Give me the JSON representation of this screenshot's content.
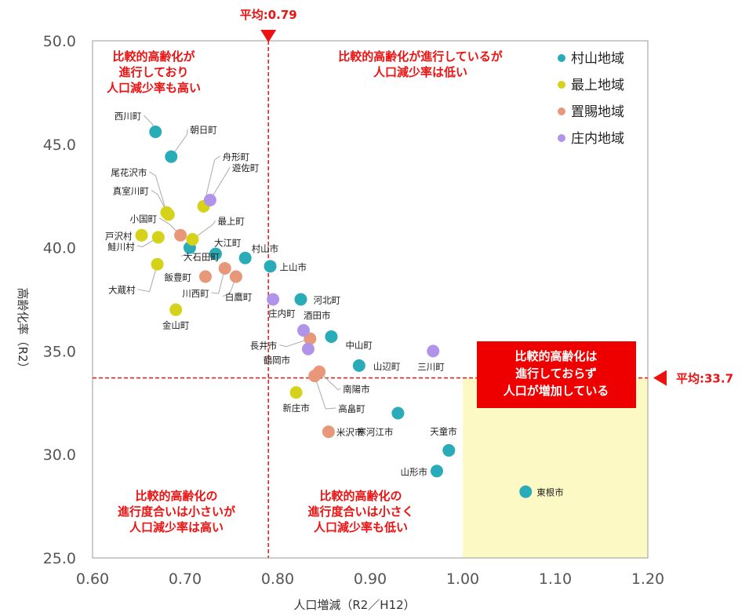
{
  "chart_data": {
    "type": "scatter",
    "title": "",
    "xlabel": "人口増減（R2／H12）",
    "ylabel": "高齢化率（R2）",
    "xlim": [
      0.6,
      1.2
    ],
    "ylim": [
      25.0,
      50.0
    ],
    "x_ticks": [
      "0.60",
      "0.70",
      "0.80",
      "0.90",
      "1.00",
      "1.10",
      "1.20"
    ],
    "y_ticks": [
      "25.0",
      "30.0",
      "35.0",
      "40.0",
      "45.0",
      "50.0"
    ],
    "grid": false,
    "legend_position": "top-right",
    "avg_x": {
      "value": 0.79,
      "label": "平均:0.79"
    },
    "avg_y": {
      "value": 33.7,
      "label": "平均:33.7"
    },
    "series": [
      {
        "name": "村山地域",
        "color": "#2aabb8",
        "points": [
          {
            "label": "西川町",
            "x": 0.668,
            "y": 45.6
          },
          {
            "label": "朝日町",
            "x": 0.685,
            "y": 44.4
          },
          {
            "label": "大石田町",
            "x": 0.705,
            "y": 40.0
          },
          {
            "label": "大江町",
            "x": 0.733,
            "y": 39.7
          },
          {
            "label": "村山市",
            "x": 0.765,
            "y": 39.5
          },
          {
            "label": "上山市",
            "x": 0.792,
            "y": 39.1
          },
          {
            "label": "河北町",
            "x": 0.825,
            "y": 37.5
          },
          {
            "label": "中山町",
            "x": 0.858,
            "y": 35.7
          },
          {
            "label": "山辺町",
            "x": 0.888,
            "y": 34.3
          },
          {
            "label": "寒河江市",
            "x": 0.93,
            "y": 32.0
          },
          {
            "label": "天童市",
            "x": 0.985,
            "y": 30.2
          },
          {
            "label": "山形市",
            "x": 0.972,
            "y": 29.2
          },
          {
            "label": "東根市",
            "x": 1.068,
            "y": 28.2
          }
        ]
      },
      {
        "name": "最上地域",
        "color": "#d6d21a",
        "points": [
          {
            "label": "尾花沢市",
            "x": 0.68,
            "y": 41.7
          },
          {
            "label": "真室川町",
            "x": 0.682,
            "y": 41.6
          },
          {
            "label": "舟形町",
            "x": 0.72,
            "y": 42.0
          },
          {
            "label": "最上町",
            "x": 0.708,
            "y": 40.4
          },
          {
            "label": "戸沢村",
            "x": 0.653,
            "y": 40.6
          },
          {
            "label": "鮭川村",
            "x": 0.671,
            "y": 40.5
          },
          {
            "label": "大蔵村",
            "x": 0.67,
            "y": 39.2
          },
          {
            "label": "金山町",
            "x": 0.69,
            "y": 37.0
          },
          {
            "label": "新庄市",
            "x": 0.82,
            "y": 33.0
          }
        ]
      },
      {
        "name": "置賜地域",
        "color": "#e8977a",
        "points": [
          {
            "label": "小国町",
            "x": 0.695,
            "y": 40.6
          },
          {
            "label": "飯豊町",
            "x": 0.722,
            "y": 38.6
          },
          {
            "label": "川西町",
            "x": 0.743,
            "y": 39.0
          },
          {
            "label": "白鷹町",
            "x": 0.755,
            "y": 38.6
          },
          {
            "label": "長井市",
            "x": 0.835,
            "y": 35.6
          },
          {
            "label": "南陽市",
            "x": 0.845,
            "y": 34.0
          },
          {
            "label": "高畠町",
            "x": 0.84,
            "y": 33.8
          },
          {
            "label": "米沢市",
            "x": 0.855,
            "y": 31.1
          }
        ]
      },
      {
        "name": "庄内地域",
        "color": "#b094ea",
        "points": [
          {
            "label": "遊佐町",
            "x": 0.727,
            "y": 42.3
          },
          {
            "label": "庄内町",
            "x": 0.795,
            "y": 37.5
          },
          {
            "label": "酒田市",
            "x": 0.828,
            "y": 36.0
          },
          {
            "label": "鶴岡市",
            "x": 0.833,
            "y": 35.1
          },
          {
            "label": "三川町",
            "x": 0.968,
            "y": 35.0
          }
        ]
      }
    ],
    "annotations": {
      "top_left": [
        "比較的高齢化が",
        "進行しており",
        "人口減少率も高い"
      ],
      "top_right": [
        "比較的高齢化が進行しているが",
        "人口減少率は低い"
      ],
      "bottom_left": [
        "比較的高齢化の",
        "進行度合いは小さいが",
        "人口減少率は高い"
      ],
      "bottom_mid": [
        "比較的高齢化の",
        "進行度合いは小さく",
        "人口減少率も低い"
      ],
      "highlight": [
        "比較的高齢化は",
        "進行しておらず",
        "人口が増加している"
      ]
    },
    "colors": {
      "accent_red": "#ee1111",
      "highlight_fill": "#fdf9c4",
      "box_fill": "#ee0000"
    }
  }
}
